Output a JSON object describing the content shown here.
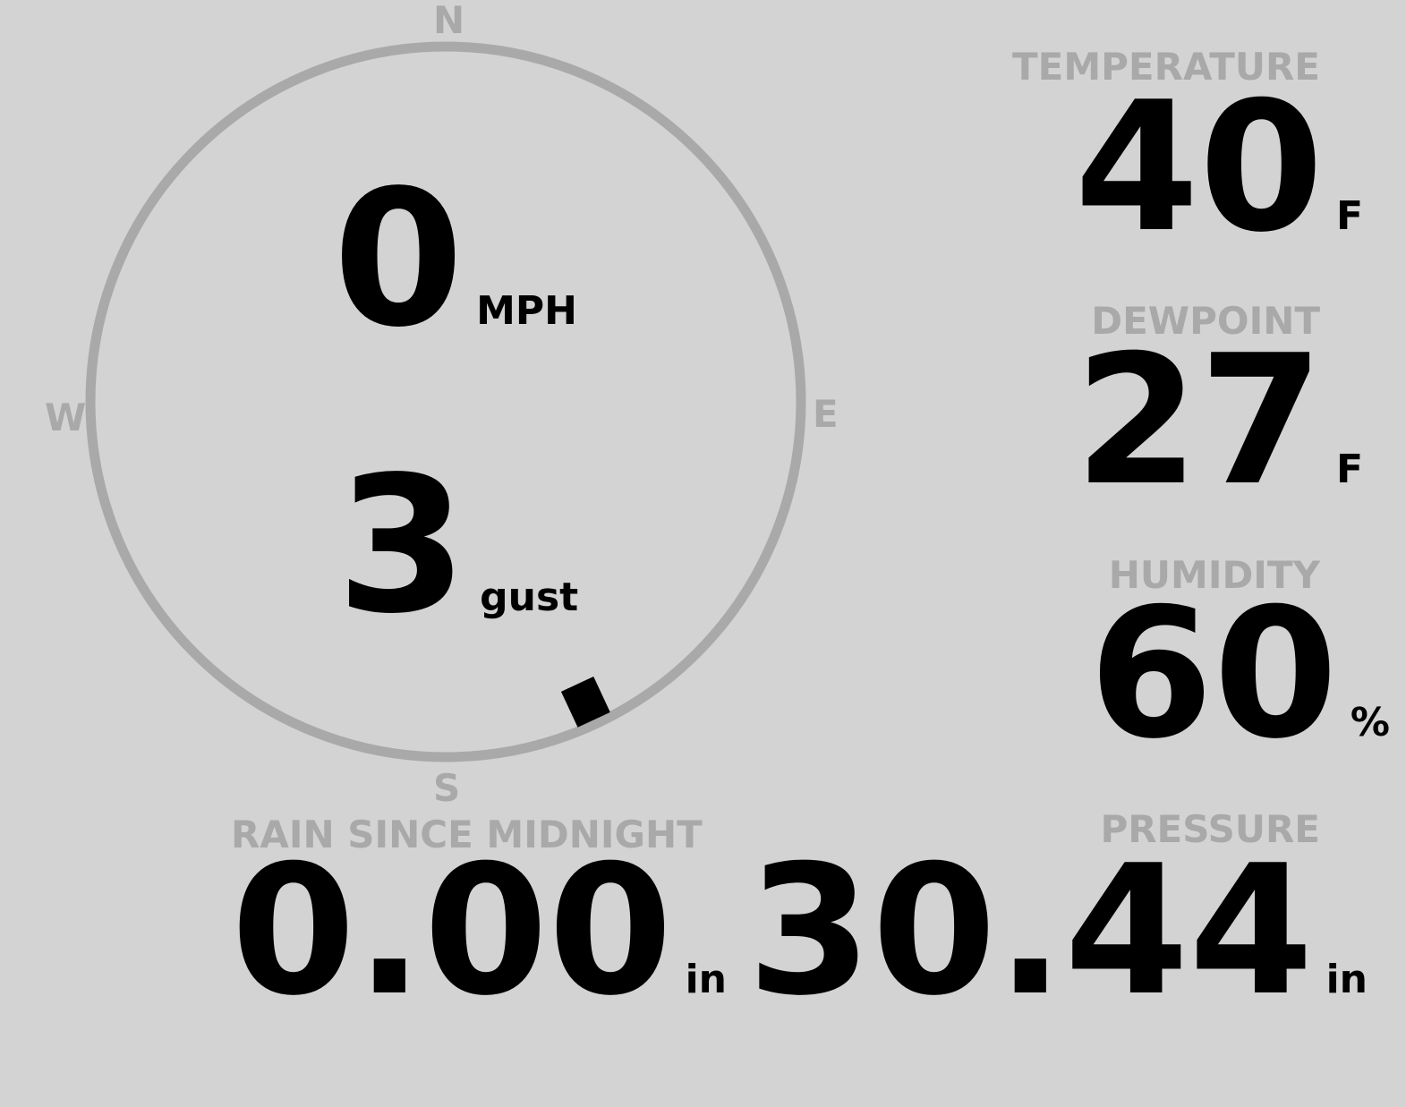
{
  "colors": {
    "background": "#d3d3d3",
    "label": "#a9a9a9",
    "value": "#000000"
  },
  "compass": {
    "north": "N",
    "south": "S",
    "east": "E",
    "west": "W",
    "wind_direction_deg": 155
  },
  "wind": {
    "speed": "0",
    "speed_unit": "MPH",
    "gust": "3",
    "gust_unit": "gust"
  },
  "temperature": {
    "label": "TEMPERATURE",
    "value": "40",
    "unit": "F"
  },
  "dewpoint": {
    "label": "DEWPOINT",
    "value": "27",
    "unit": "F"
  },
  "humidity": {
    "label": "HUMIDITY",
    "value": "60",
    "unit": "%"
  },
  "rain": {
    "label": "RAIN SINCE MIDNIGHT",
    "value": "0.00",
    "unit": "in"
  },
  "pressure": {
    "label": "PRESSURE",
    "value": "30.44",
    "unit": "in"
  }
}
